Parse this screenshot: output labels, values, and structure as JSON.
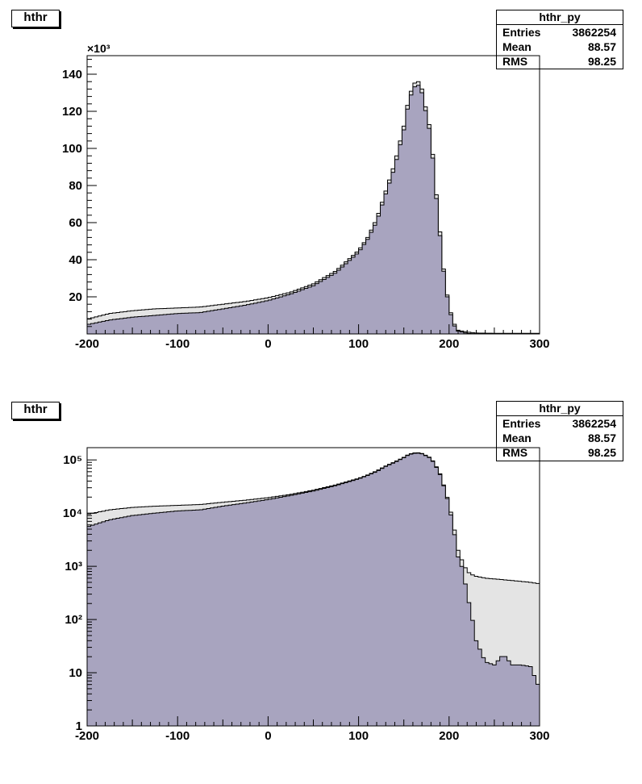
{
  "colors": {
    "filled": "#a8a4bf",
    "outer": "#e4e4e4",
    "frame": "#000000"
  },
  "chart_data": [
    {
      "type": "area",
      "title": "hthr",
      "y_scale": "linear",
      "y_multiplier_label": "×10³",
      "xlim": [
        -200,
        300
      ],
      "ylim": [
        0,
        150
      ],
      "xticks": [
        "-200",
        "-100",
        "0",
        "100",
        "200",
        "300"
      ],
      "yticks": [
        "20",
        "40",
        "60",
        "80",
        "100",
        "120",
        "140"
      ],
      "grid": false,
      "stats": {
        "name": "hthr_py",
        "rows": [
          {
            "k": "Entries",
            "v": "3862254"
          },
          {
            "k": "Mean",
            "v": "88.57"
          },
          {
            "k": "RMS",
            "v": "98.25"
          }
        ]
      },
      "x": [
        -200,
        -175,
        -150,
        -125,
        -100,
        -75,
        -50,
        -25,
        0,
        25,
        50,
        75,
        100,
        110,
        120,
        130,
        140,
        150,
        155,
        160,
        165,
        170,
        175,
        180,
        185,
        190,
        195,
        200,
        205,
        210,
        220,
        230,
        240,
        260,
        280,
        300
      ],
      "series": [
        {
          "values": [
            8,
            11,
            12.5,
            13.5,
            14,
            14.5,
            16,
            17.5,
            19.5,
            22.5,
            27,
            34,
            45,
            52,
            62,
            77,
            92,
            112,
            126,
            134,
            137,
            132,
            120,
            108,
            80,
            55,
            30,
            15,
            6,
            2,
            1,
            0.5,
            0.4,
            0.3,
            0.3,
            0.3
          ]
        },
        {
          "values": [
            5,
            7.5,
            9,
            10,
            11,
            11.5,
            13.5,
            15.5,
            18,
            21.5,
            26,
            33,
            44,
            51,
            60.5,
            75.5,
            90,
            110,
            124,
            132,
            135,
            130,
            118,
            106,
            78,
            53,
            29,
            14,
            5,
            1.5,
            0.3,
            0.1,
            0.05,
            0.02,
            0.01,
            0.01
          ]
        }
      ]
    },
    {
      "type": "area",
      "title": "hthr",
      "y_scale": "log",
      "xlim": [
        -200,
        300
      ],
      "ylim": [
        1,
        170000
      ],
      "xticks": [
        "-200",
        "-100",
        "0",
        "100",
        "200",
        "300"
      ],
      "yticks": [
        "1",
        "10",
        "10²",
        "10³",
        "10⁴",
        "10⁵"
      ],
      "grid": false,
      "stats": {
        "name": "hthr_py",
        "rows": [
          {
            "k": "Entries",
            "v": "3862254"
          },
          {
            "k": "Mean",
            "v": "88.57"
          },
          {
            "k": "RMS",
            "v": "98.25"
          }
        ]
      },
      "x": [
        -200,
        -175,
        -150,
        -125,
        -100,
        -75,
        -50,
        -25,
        0,
        25,
        50,
        75,
        100,
        110,
        120,
        130,
        140,
        150,
        155,
        160,
        165,
        170,
        175,
        180,
        185,
        190,
        195,
        200,
        205,
        210,
        215,
        220,
        225,
        230,
        240,
        250,
        260,
        270,
        280,
        290,
        300
      ],
      "series": [
        {
          "values": [
            9500,
            11500,
            12800,
            13500,
            14000,
            14500,
            16000,
            17500,
            19500,
            22500,
            27000,
            34000,
            45000,
            52000,
            62000,
            77000,
            92000,
            112000,
            126000,
            134000,
            137000,
            132000,
            120000,
            108000,
            80000,
            55000,
            30000,
            15000,
            6000,
            2000,
            1200,
            800,
            700,
            650,
            600,
            580,
            560,
            540,
            520,
            500,
            470
          ]
        },
        {
          "values": [
            5500,
            7500,
            9000,
            10000,
            11000,
            11500,
            13500,
            15500,
            18000,
            21500,
            26000,
            33000,
            44000,
            51000,
            60500,
            75500,
            90000,
            110000,
            124000,
            132000,
            135000,
            130000,
            118000,
            106000,
            78000,
            53000,
            29000,
            14000,
            5000,
            1500,
            900,
            300,
            120,
            40,
            16,
            14,
            22,
            14,
            14,
            13,
            5
          ]
        }
      ]
    }
  ]
}
